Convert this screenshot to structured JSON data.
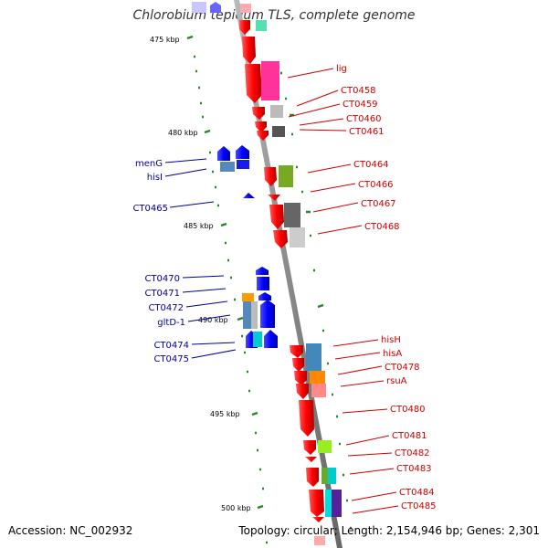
{
  "title": "Chlorobium tepidum TLS, complete genome",
  "footer": {
    "accession": "Accession: NC_002932",
    "stats": "Topology: circular; Length: 2,154,946 bp; Genes: 2,301"
  },
  "colors": {
    "forward_label": "#cc0000",
    "reverse_label": "#000099",
    "backbone": "#888888",
    "kbp_tick": "#22882a"
  },
  "scale": {
    "ticks": [
      {
        "label": "475 kbp",
        "kbp": 475
      },
      {
        "label": "480 kbp",
        "kbp": 480
      },
      {
        "label": "485 kbp",
        "kbp": 485
      },
      {
        "label": "490 kbp",
        "kbp": 490
      },
      {
        "label": "495 kbp",
        "kbp": 495
      },
      {
        "label": "500 kbp",
        "kbp": 500
      }
    ]
  },
  "forward_genes": [
    {
      "label": "lig"
    },
    {
      "label": "CT0458"
    },
    {
      "label": "CT0459"
    },
    {
      "label": "CT0460"
    },
    {
      "label": "CT0461"
    },
    {
      "label": "CT0464"
    },
    {
      "label": "CT0466"
    },
    {
      "label": "CT0467"
    },
    {
      "label": "CT0468"
    },
    {
      "label": "hisH"
    },
    {
      "label": "hisA"
    },
    {
      "label": "CT0478"
    },
    {
      "label": "rsuA"
    },
    {
      "label": "CT0480"
    },
    {
      "label": "CT0481"
    },
    {
      "label": "CT0482"
    },
    {
      "label": "CT0483"
    },
    {
      "label": "CT0484"
    },
    {
      "label": "CT0485"
    }
  ],
  "reverse_genes": [
    {
      "label": "menG"
    },
    {
      "label": "hisI"
    },
    {
      "label": "CT0465"
    },
    {
      "label": "CT0470"
    },
    {
      "label": "CT0471"
    },
    {
      "label": "CT0472"
    },
    {
      "label": "gltD-1"
    },
    {
      "label": "CT0474"
    },
    {
      "label": "CT0475"
    }
  ]
}
